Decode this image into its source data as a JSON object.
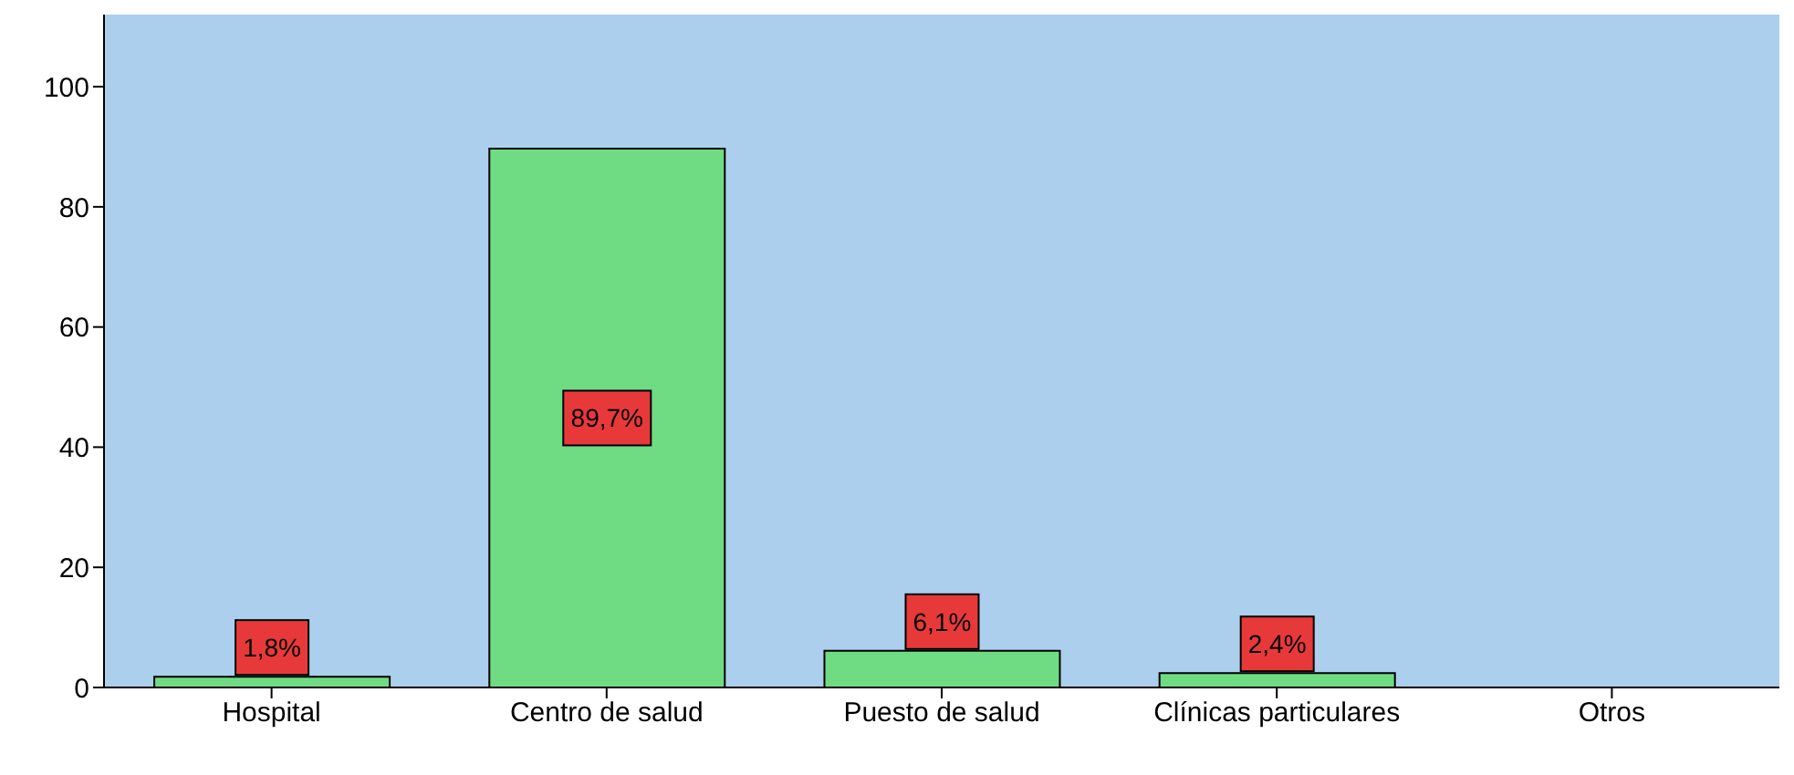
{
  "chart_data": {
    "type": "bar",
    "categories": [
      "Hospital",
      "Centro de salud",
      "Puesto de salud",
      "Clínicas particulares",
      "Otros"
    ],
    "values": [
      1.8,
      89.7,
      6.1,
      2.4,
      null
    ],
    "value_labels": [
      "1,8%",
      "89,7%",
      "6,1%",
      "2,4%",
      null
    ],
    "color": "#6fdc84",
    "ylim": [
      0,
      112
    ],
    "yticks": [
      0,
      20,
      40,
      60,
      80,
      100
    ],
    "grid": false,
    "legend": false
  }
}
